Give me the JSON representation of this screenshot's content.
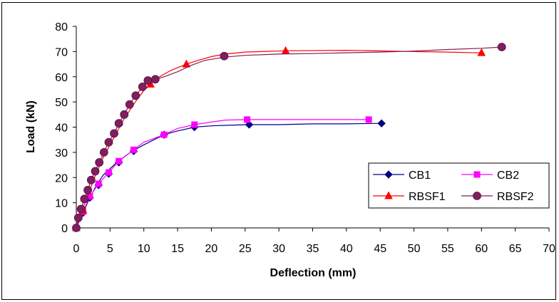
{
  "chart_data": {
    "type": "line",
    "title": "",
    "xlabel": "Deflection (mm)",
    "ylabel": "Load (kN)",
    "xlim": [
      0,
      70
    ],
    "ylim": [
      0,
      80
    ],
    "xticks": [
      0,
      5,
      10,
      15,
      20,
      25,
      30,
      35,
      40,
      45,
      50,
      55,
      60,
      65,
      70
    ],
    "yticks": [
      0,
      10,
      20,
      30,
      40,
      50,
      60,
      70,
      80
    ],
    "grid": false,
    "legend_position": "lower-right",
    "series": [
      {
        "name": "CB1",
        "color": "#00007f",
        "marker": "diamond",
        "line": {
          "x": [
            0,
            1,
            2,
            3,
            4,
            6,
            8,
            10,
            13,
            15,
            17.5,
            20,
            22,
            25.5,
            30,
            35,
            40,
            45.2
          ],
          "y": [
            0,
            6,
            12,
            17,
            21,
            26,
            30,
            33,
            37,
            38.5,
            40,
            40.5,
            40.7,
            41,
            41,
            41.3,
            41.3,
            41.5
          ]
        },
        "markers": {
          "x": [
            0,
            1,
            2,
            3.3,
            4.8,
            6.3,
            8.5,
            13,
            17.5,
            25.6,
            45.2
          ],
          "y": [
            0,
            6,
            12,
            17,
            21.5,
            26,
            30.5,
            37,
            40,
            41,
            41.5
          ]
        }
      },
      {
        "name": "CB2",
        "color": "#ff00ff",
        "marker": "square",
        "line": {
          "x": [
            0,
            1,
            2,
            3.3,
            4.8,
            6.3,
            8.5,
            10,
            13,
            15,
            17.5,
            20,
            22,
            25.3,
            30,
            35,
            40,
            43.3
          ],
          "y": [
            0,
            6.5,
            12.5,
            17.5,
            22,
            26.5,
            31,
            34,
            37,
            39.5,
            41,
            42,
            42.8,
            43,
            43,
            43,
            43,
            43
          ]
        },
        "markers": {
          "x": [
            0,
            1,
            2,
            3.3,
            4.8,
            6.3,
            8.5,
            13,
            17.5,
            25.3,
            43.3
          ],
          "y": [
            0,
            6.5,
            12.5,
            17.5,
            22,
            26.5,
            31,
            37,
            41,
            43,
            43
          ]
        }
      },
      {
        "name": "RBSF1",
        "color": "#ff0000",
        "marker": "triangle",
        "line": {
          "x": [
            0,
            0.5,
            1,
            2,
            3,
            4,
            5,
            6,
            7,
            8,
            9,
            10,
            11,
            12,
            14,
            16.3,
            18,
            20,
            22,
            25,
            31,
            40,
            50,
            55,
            58,
            60
          ],
          "y": [
            0,
            4,
            8,
            15,
            22,
            28,
            33,
            38,
            43,
            47,
            51,
            54.5,
            57,
            59.5,
            62.5,
            65,
            66.5,
            68,
            69,
            69.8,
            70.3,
            70.5,
            70,
            69.8,
            69.6,
            69.5
          ]
        },
        "markers": {
          "x": [
            0,
            1,
            11,
            16.3,
            31,
            60
          ],
          "y": [
            0,
            7,
            57,
            65,
            70.3,
            69.5
          ]
        }
      },
      {
        "name": "RBSF2",
        "color": "#7f1f5f",
        "marker": "circle",
        "line": {
          "x": [
            0,
            0.3,
            0.7,
            1.2,
            1.7,
            2.2,
            2.8,
            3.4,
            4.1,
            4.8,
            5.6,
            6.3,
            7.1,
            7.9,
            8.8,
            9.8,
            10.6,
            11.7,
            13,
            15,
            17,
            19,
            22,
            25,
            30,
            35,
            40,
            45,
            50,
            55,
            60,
            63
          ],
          "y": [
            0,
            4,
            7.5,
            11.5,
            15,
            19,
            22.5,
            26,
            30,
            34,
            37.5,
            41.5,
            45,
            49,
            52.5,
            56,
            58.5,
            59,
            60,
            62,
            64.5,
            66.5,
            67.8,
            68.5,
            69,
            69.2,
            69.5,
            69.8,
            70.2,
            70.8,
            71.3,
            71.8
          ]
        },
        "markers": {
          "x": [
            0,
            0.3,
            0.7,
            1.2,
            1.7,
            2.2,
            2.8,
            3.4,
            4.1,
            4.8,
            5.6,
            6.3,
            7.1,
            7.9,
            8.8,
            9.8,
            10.6,
            11.7,
            21.9,
            63
          ],
          "y": [
            0,
            4,
            7.5,
            11.5,
            15,
            19,
            22.5,
            26,
            30,
            34,
            37.5,
            41.5,
            45,
            49,
            52.5,
            56,
            58.5,
            59,
            68.2,
            71.8
          ]
        }
      }
    ]
  }
}
